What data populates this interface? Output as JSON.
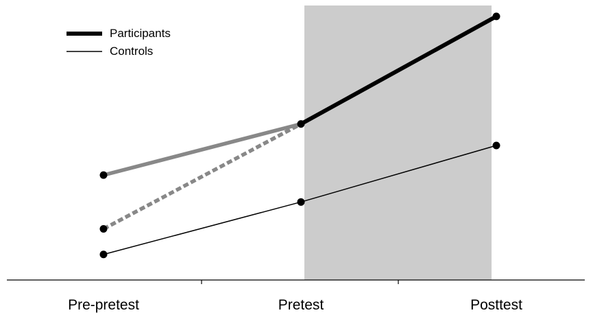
{
  "chart_data": {
    "type": "line",
    "title": "",
    "xlabel": "",
    "ylabel": "",
    "categories": [
      "Pre-pretest",
      "Pretest",
      "Posttest"
    ],
    "shaded_region": {
      "from": "Pretest",
      "to": "Posttest",
      "color": "#cccccc"
    },
    "ylim": [
      0,
      10
    ],
    "y_axis_visible": false,
    "grid": false,
    "legend": {
      "position": "top-left",
      "entries": [
        {
          "label": "Participants",
          "color": "#000000",
          "style": "thick"
        },
        {
          "label": "Controls",
          "color": "#000000",
          "style": "thin"
        }
      ]
    },
    "series": [
      {
        "name": "Participants",
        "values": [
          null,
          5.8,
          9.8
        ],
        "color": "#000000",
        "style": "solid-thick"
      },
      {
        "name": "Controls",
        "values": [
          0.95,
          2.9,
          5.0
        ],
        "color": "#000000",
        "style": "solid-thin"
      },
      {
        "values": [
          3.9,
          5.8,
          null
        ],
        "color": "#888888",
        "style": "solid-gray"
      },
      {
        "values": [
          1.9,
          5.8,
          null
        ],
        "color": "#888888",
        "style": "dashed-gray"
      }
    ]
  }
}
